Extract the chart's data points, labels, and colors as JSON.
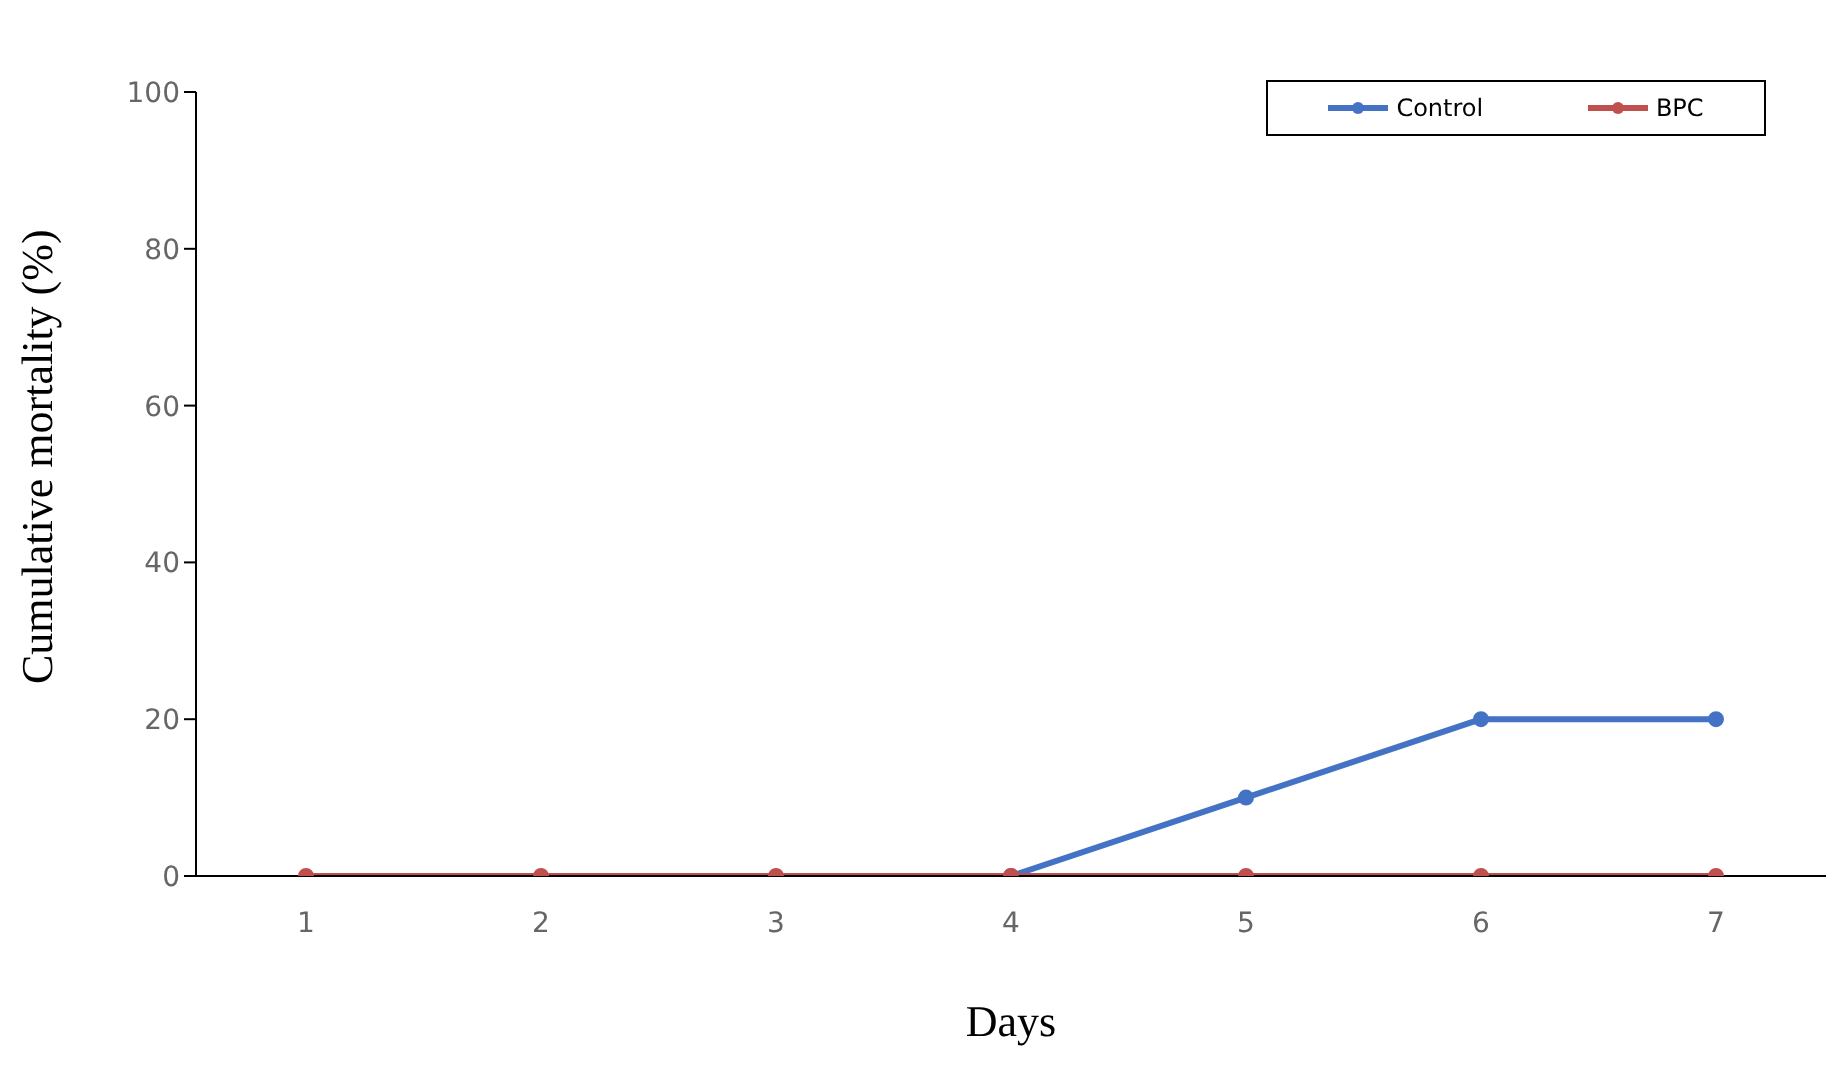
{
  "chart_data": {
    "type": "line",
    "xlabel": "Days",
    "ylabel": "Cumulative mortality (%)",
    "categories": [
      "1",
      "2",
      "3",
      "4",
      "5",
      "6",
      "7"
    ],
    "series": [
      {
        "name": "Control",
        "color": "#4472c4",
        "values": [
          null,
          null,
          null,
          0,
          10,
          20,
          20
        ]
      },
      {
        "name": "BPC",
        "color": "#c0504d",
        "values": [
          0,
          0,
          0,
          0,
          0,
          0,
          0
        ]
      }
    ],
    "ylim": [
      0,
      100
    ],
    "yticks": [
      0,
      20,
      40,
      60,
      80,
      100
    ],
    "grid": false,
    "legend": "top right",
    "marker": "circle",
    "line_style": "solid"
  }
}
